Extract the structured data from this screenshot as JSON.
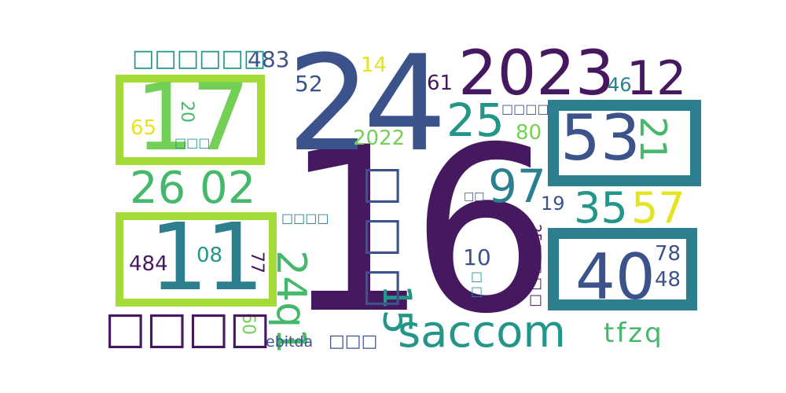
{
  "words": {
    "w16": "16",
    "w24": "24",
    "w2023": "2023",
    "w17": "17",
    "w11": "11",
    "w53": "53",
    "w40": "40",
    "w12": "12",
    "w25": "25",
    "w2602": "26 02",
    "w97": "97",
    "w35": "35",
    "w57": "57",
    "w21": "21",
    "w15": "15",
    "w24q1": "24q1",
    "wsaccom": "saccom",
    "wtfzq": "tfzq",
    "w483": "483",
    "w52": "52",
    "w14": "14",
    "w61": "61",
    "w46": "46",
    "w65": "65",
    "w20": "20",
    "w2022": "2022",
    "w80": "80",
    "w19": "19",
    "w10": "10",
    "w08": "08",
    "w77": "77",
    "w484": "484",
    "w78": "78",
    "w48": "48",
    "w60": "60",
    "wEbitda": "ebitda",
    "cjk6": "□□□□□□",
    "cjk4big": "□□□□",
    "cjk3": "□□□",
    "cjk3b": "□□□",
    "cjk3c": "□□□",
    "cjk4a": "□□□□",
    "cjk4b": "□□□□",
    "cjk2a": "□□",
    "cjk2b": "□□",
    "cjk25": "25□□□□"
  },
  "colors": {
    "dark_purple": "#46185f",
    "indigo": "#3b528b",
    "teal": "#2c7f8e",
    "green_teal": "#23968a",
    "green": "#45b86b",
    "light_green": "#74cf57",
    "yellow_green": "#a5db36",
    "yellow": "#e6e41f"
  }
}
